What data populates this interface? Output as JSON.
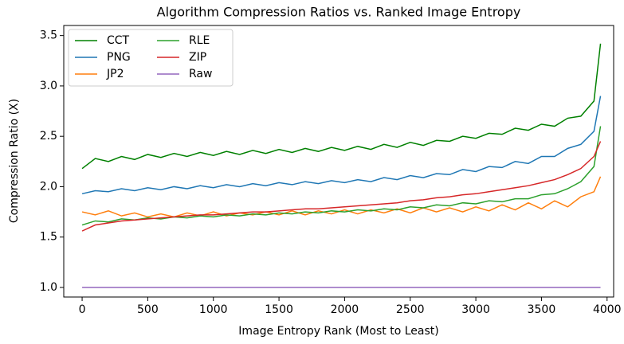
{
  "chart_data": {
    "type": "line",
    "title": "Algorithm Compression Ratios vs. Ranked Image Entropy",
    "x_label": "Image Entropy Rank (Most to Least)",
    "y_label": "Compression Ratio (X)",
    "x": [
      0,
      100,
      200,
      300,
      400,
      500,
      600,
      700,
      800,
      900,
      1000,
      1100,
      1200,
      1300,
      1400,
      1500,
      1600,
      1700,
      1800,
      1900,
      2000,
      2100,
      2200,
      2300,
      2400,
      2500,
      2600,
      2700,
      2800,
      2900,
      3000,
      3100,
      3200,
      3300,
      3400,
      3500,
      3600,
      3700,
      3800,
      3900,
      3950
    ],
    "series": [
      {
        "name": "CCT",
        "color": "#008000",
        "values": [
          2.18,
          2.28,
          2.25,
          2.3,
          2.27,
          2.32,
          2.29,
          2.33,
          2.3,
          2.34,
          2.31,
          2.35,
          2.32,
          2.36,
          2.33,
          2.37,
          2.34,
          2.38,
          2.35,
          2.39,
          2.36,
          2.4,
          2.37,
          2.42,
          2.39,
          2.44,
          2.41,
          2.46,
          2.45,
          2.5,
          2.48,
          2.53,
          2.52,
          2.58,
          2.56,
          2.62,
          2.6,
          2.68,
          2.7,
          2.85,
          3.42
        ]
      },
      {
        "name": "PNG",
        "color": "#1f77b4",
        "values": [
          1.93,
          1.96,
          1.95,
          1.98,
          1.96,
          1.99,
          1.97,
          2.0,
          1.98,
          2.01,
          1.99,
          2.02,
          2.0,
          2.03,
          2.01,
          2.04,
          2.02,
          2.05,
          2.03,
          2.06,
          2.04,
          2.07,
          2.05,
          2.09,
          2.07,
          2.11,
          2.09,
          2.13,
          2.12,
          2.17,
          2.15,
          2.2,
          2.19,
          2.25,
          2.23,
          2.3,
          2.3,
          2.38,
          2.42,
          2.55,
          2.9
        ]
      },
      {
        "name": "JP2",
        "color": "#ff7f0e",
        "values": [
          1.75,
          1.72,
          1.76,
          1.71,
          1.74,
          1.7,
          1.73,
          1.7,
          1.74,
          1.71,
          1.75,
          1.71,
          1.74,
          1.72,
          1.75,
          1.72,
          1.76,
          1.72,
          1.76,
          1.73,
          1.77,
          1.73,
          1.77,
          1.74,
          1.78,
          1.74,
          1.79,
          1.75,
          1.79,
          1.75,
          1.8,
          1.76,
          1.82,
          1.77,
          1.84,
          1.78,
          1.86,
          1.8,
          1.9,
          1.95,
          2.1
        ]
      },
      {
        "name": "RLE",
        "color": "#2ca02c",
        "values": [
          1.62,
          1.66,
          1.65,
          1.68,
          1.67,
          1.69,
          1.68,
          1.7,
          1.69,
          1.71,
          1.7,
          1.72,
          1.71,
          1.73,
          1.72,
          1.74,
          1.73,
          1.75,
          1.74,
          1.76,
          1.75,
          1.77,
          1.76,
          1.78,
          1.77,
          1.8,
          1.79,
          1.82,
          1.81,
          1.84,
          1.83,
          1.86,
          1.85,
          1.88,
          1.88,
          1.92,
          1.93,
          1.98,
          2.05,
          2.2,
          2.6
        ]
      },
      {
        "name": "ZIP",
        "color": "#d62728",
        "values": [
          1.56,
          1.62,
          1.64,
          1.66,
          1.67,
          1.68,
          1.69,
          1.7,
          1.71,
          1.72,
          1.72,
          1.73,
          1.74,
          1.75,
          1.75,
          1.76,
          1.77,
          1.78,
          1.78,
          1.79,
          1.8,
          1.81,
          1.82,
          1.83,
          1.84,
          1.86,
          1.87,
          1.89,
          1.9,
          1.92,
          1.93,
          1.95,
          1.97,
          1.99,
          2.01,
          2.04,
          2.07,
          2.12,
          2.18,
          2.3,
          2.45
        ]
      },
      {
        "name": "Raw",
        "color": "#9467bd",
        "values": [
          1,
          1,
          1,
          1,
          1,
          1,
          1,
          1,
          1,
          1,
          1,
          1,
          1,
          1,
          1,
          1,
          1,
          1,
          1,
          1,
          1,
          1,
          1,
          1,
          1,
          1,
          1,
          1,
          1,
          1,
          1,
          1,
          1,
          1,
          1,
          1,
          1,
          1,
          1,
          1,
          1
        ]
      }
    ],
    "xlim": [
      -140,
      4050
    ],
    "xticks": [
      0,
      500,
      1000,
      1500,
      2000,
      2500,
      3000,
      3500,
      4000
    ],
    "ylim": [
      0.905,
      3.6
    ],
    "yticks": [
      {
        "value": 1,
        "label": "1.0"
      },
      1.5,
      {
        "value": 2,
        "label": "2.0"
      },
      2.5,
      {
        "value": 3,
        "label": "3.0"
      },
      3.5
    ],
    "legend": "upper left",
    "legend_columns": 2,
    "grid": false
  }
}
